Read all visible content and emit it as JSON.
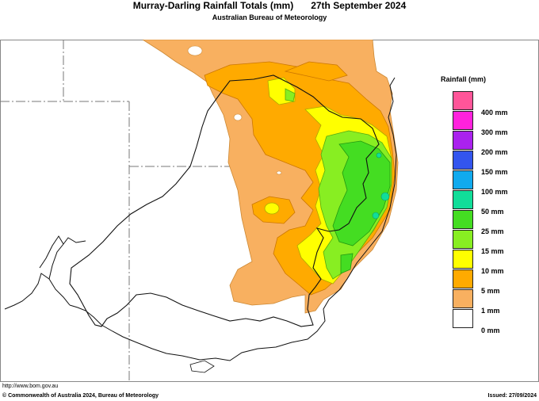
{
  "header": {
    "title": "Murray-Darling Rainfall Totals (mm)",
    "date": "27th September 2024",
    "subtitle": "Australian Bureau of Meteorology"
  },
  "legend": {
    "title": "Rainfall (mm)",
    "items": [
      {
        "label": "400 mm",
        "color": "#ff5599"
      },
      {
        "label": "300 mm",
        "color": "#ff22dd"
      },
      {
        "label": "200 mm",
        "color": "#aa22ee"
      },
      {
        "label": "150 mm",
        "color": "#3355ee"
      },
      {
        "label": "100 mm",
        "color": "#11aaee"
      },
      {
        "label": "50 mm",
        "color": "#11dd99"
      },
      {
        "label": "25 mm",
        "color": "#44dd22"
      },
      {
        "label": "15 mm",
        "color": "#88ee22"
      },
      {
        "label": "10 mm",
        "color": "#ffff00"
      },
      {
        "label": "5 mm",
        "color": "#ffaa00"
      },
      {
        "label": "1 mm",
        "color": "#f8b060"
      },
      {
        "label": "0 mm",
        "color": "#ffffff"
      }
    ]
  },
  "footer": {
    "url": "http://www.bom.gov.au",
    "copyright": "© Commonwealth of Australia 2024, Bureau of Meteorology",
    "issued": "Issued: 27/09/2024"
  }
}
